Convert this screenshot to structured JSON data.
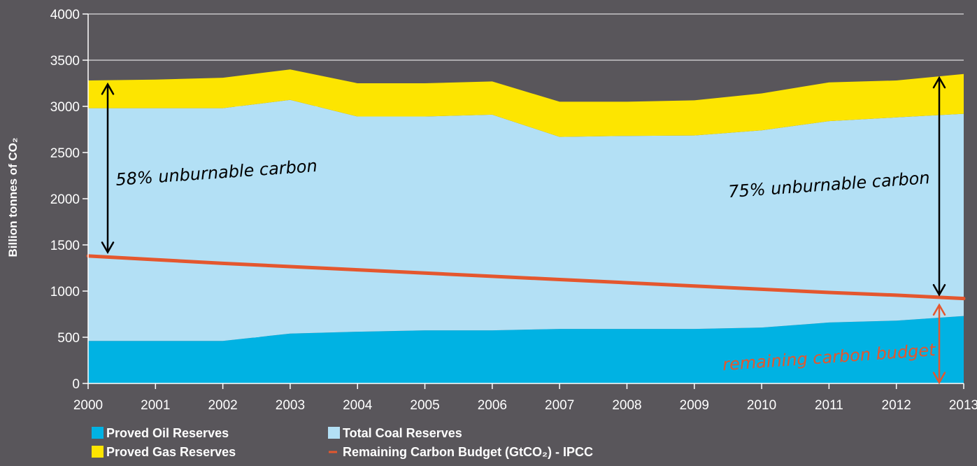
{
  "chart_data": {
    "type": "area",
    "x": [
      2000,
      2001,
      2002,
      2003,
      2004,
      2005,
      2006,
      2007,
      2008,
      2009,
      2010,
      2011,
      2012,
      2013
    ],
    "ylabel": "Billion tonnes of CO₂",
    "ylim": [
      0,
      4000
    ],
    "yticks": [
      0,
      500,
      1000,
      1500,
      2000,
      2500,
      3000,
      3500,
      4000
    ],
    "grid": true,
    "stacked": true,
    "series": [
      {
        "name": "Proved Oil Reserves",
        "color": "#00b2e3",
        "values": [
          460,
          460,
          460,
          540,
          560,
          575,
          575,
          590,
          590,
          590,
          605,
          660,
          680,
          730
        ]
      },
      {
        "name": "Total Coal Reserves",
        "color": "#b3e0f5",
        "values": [
          2520,
          2520,
          2520,
          2530,
          2330,
          2315,
          2335,
          2080,
          2090,
          2095,
          2135,
          2180,
          2200,
          2190
        ]
      },
      {
        "name": "Proved Gas Reserves",
        "color": "#fde500",
        "values": [
          300,
          310,
          330,
          330,
          360,
          360,
          360,
          380,
          370,
          380,
          400,
          420,
          400,
          430
        ]
      }
    ],
    "line": {
      "name": "Remaining Carbon Budget (GtCO₂) - IPCC",
      "color": "#e4572e",
      "values": [
        1380,
        1340,
        1300,
        1265,
        1230,
        1195,
        1160,
        1125,
        1090,
        1055,
        1020,
        985,
        955,
        920
      ]
    },
    "annotations": [
      {
        "text": "58% unburnable carbon",
        "color": "#000000"
      },
      {
        "text": "75% unburnable carbon",
        "color": "#000000"
      },
      {
        "text": "remaining carbon budget",
        "color": "#e4572e"
      }
    ],
    "legend_position": "bottom-left"
  }
}
